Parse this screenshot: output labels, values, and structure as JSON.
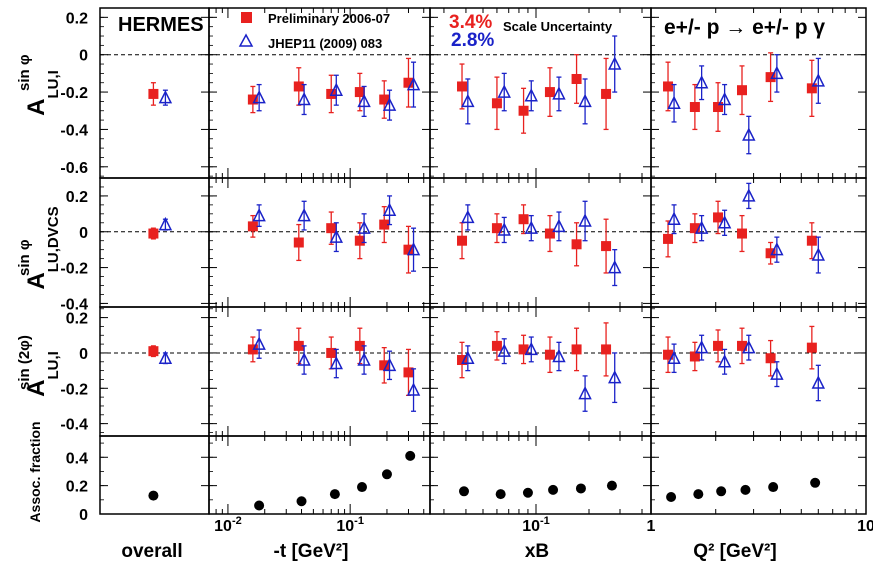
{
  "figure": {
    "experiment_label": "HERMES",
    "reaction": "e+/- p → e+/- p γ",
    "scale_uncertainty_red": "3.4%",
    "scale_uncertainty_blue": "2.8%",
    "scale_uncertainty_label": "Scale Uncertainty",
    "legend": [
      {
        "label": "Preliminary 2006-07",
        "marker": "filled-square",
        "color": "#e8211f"
      },
      {
        "label": "JHEP11 (2009) 083",
        "marker": "open-triangle",
        "color": "#1a22c8"
      }
    ],
    "row_labels": [
      {
        "main": "A",
        "sup": "sin φ",
        "sub": "LU,I"
      },
      {
        "main": "A",
        "sup": "sin φ",
        "sub": "LU,DVCS"
      },
      {
        "main": "A",
        "sup": "sin (2φ)",
        "sub": "LU,I"
      },
      {
        "main": "Assoc. fraction"
      }
    ],
    "column_labels": [
      "overall",
      "-t [GeV²]",
      "xB",
      "Q² [GeV²]"
    ],
    "colors": {
      "red": "#e8211f",
      "blue": "#1a22c8",
      "black": "#000000"
    }
  },
  "chart_data": {
    "type": "scatter",
    "x_scale": {
      "overall": {
        "type": "category",
        "x_red": "overall",
        "x_blue": "overall"
      },
      "t": {
        "type": "log",
        "xlim": [
          0.007,
          0.45
        ],
        "ticks": [
          0.01,
          0.1
        ],
        "tick_labels": [
          "10⁻²",
          "10⁻¹"
        ]
      },
      "xB": {
        "type": "log",
        "xlim": [
          0.025,
          0.45
        ],
        "ticks": [
          0.1
        ],
        "tick_labels": [
          "10⁻¹"
        ]
      },
      "Q2": {
        "type": "log",
        "xlim": [
          1,
          10
        ],
        "ticks": [
          1,
          10
        ],
        "tick_labels": [
          "1",
          "10"
        ]
      }
    },
    "rows": [
      {
        "ylim": [
          -0.66,
          0.25
        ],
        "yticks": [
          0.2,
          0,
          -0.2,
          -0.4,
          -0.6
        ],
        "ytick_labels": [
          "0.2",
          "0",
          "-0.2",
          "-0.4",
          "-0.6"
        ],
        "overall": {
          "red": {
            "y": -0.21,
            "err": 0.06
          },
          "blue": {
            "y": -0.23,
            "err": 0.04
          }
        },
        "t": {
          "x_red": [
            0.016,
            0.038,
            0.07,
            0.12,
            0.19,
            0.3
          ],
          "red": [
            [
              -0.24,
              0.07
            ],
            [
              -0.17,
              0.1
            ],
            [
              -0.21,
              0.1
            ],
            [
              -0.2,
              0.1
            ],
            [
              -0.24,
              0.1
            ],
            [
              -0.15,
              0.13
            ]
          ],
          "x_blue": [
            0.018,
            0.042,
            0.077,
            0.13,
            0.21,
            0.33
          ],
          "blue": [
            [
              -0.23,
              0.07
            ],
            [
              -0.24,
              0.08
            ],
            [
              -0.19,
              0.08
            ],
            [
              -0.25,
              0.08
            ],
            [
              -0.27,
              0.08
            ],
            [
              -0.16,
              0.12
            ]
          ]
        },
        "xB": {
          "x_red": [
            0.038,
            0.06,
            0.085,
            0.12,
            0.17,
            0.25
          ],
          "red": [
            [
              -0.17,
              0.12
            ],
            [
              -0.26,
              0.14
            ],
            [
              -0.3,
              0.12
            ],
            [
              -0.2,
              0.13
            ],
            [
              -0.13,
              0.13
            ],
            [
              -0.21,
              0.19
            ]
          ],
          "x_blue": [
            0.041,
            0.066,
            0.094,
            0.135,
            0.19,
            0.28
          ],
          "blue": [
            [
              -0.25,
              0.12
            ],
            [
              -0.2,
              0.1
            ],
            [
              -0.22,
              0.08
            ],
            [
              -0.21,
              0.09
            ],
            [
              -0.25,
              0.12
            ],
            [
              -0.05,
              0.15
            ]
          ]
        },
        "Q2": {
          "x_red": [
            1.2,
            1.6,
            2.05,
            2.65,
            3.6,
            5.6
          ],
          "red": [
            [
              -0.17,
              0.13
            ],
            [
              -0.28,
              0.12
            ],
            [
              -0.28,
              0.13
            ],
            [
              -0.19,
              0.13
            ],
            [
              -0.12,
              0.13
            ],
            [
              -0.18,
              0.15
            ]
          ],
          "x_blue": [
            1.28,
            1.72,
            2.2,
            2.85,
            3.85,
            6.0
          ],
          "blue": [
            [
              -0.26,
              0.1
            ],
            [
              -0.15,
              0.09
            ],
            [
              -0.24,
              0.08
            ],
            [
              -0.43,
              0.1
            ],
            [
              -0.1,
              0.1
            ],
            [
              -0.14,
              0.12
            ]
          ]
        }
      },
      {
        "ylim": [
          -0.42,
          0.3
        ],
        "yticks": [
          0.2,
          0,
          -0.2,
          -0.4
        ],
        "ytick_labels": [
          "0.2",
          "0",
          "-0.2",
          "-0.4"
        ],
        "overall": {
          "red": {
            "y": -0.01,
            "err": 0.03
          },
          "blue": {
            "y": 0.04,
            "err": 0.03
          }
        },
        "t": {
          "x_red": [
            0.016,
            0.038,
            0.07,
            0.12,
            0.19,
            0.3
          ],
          "red": [
            [
              0.03,
              0.06
            ],
            [
              -0.06,
              0.1
            ],
            [
              0.02,
              0.09
            ],
            [
              -0.05,
              0.1
            ],
            [
              0.04,
              0.1
            ],
            [
              -0.1,
              0.13
            ]
          ],
          "x_blue": [
            0.018,
            0.042,
            0.077,
            0.13,
            0.21,
            0.33
          ],
          "blue": [
            [
              0.09,
              0.06
            ],
            [
              0.09,
              0.08
            ],
            [
              -0.03,
              0.08
            ],
            [
              0.02,
              0.08
            ],
            [
              0.12,
              0.08
            ],
            [
              -0.1,
              0.12
            ]
          ]
        },
        "xB": {
          "x_red": [
            0.038,
            0.06,
            0.085,
            0.12,
            0.17,
            0.25
          ],
          "red": [
            [
              -0.05,
              0.1
            ],
            [
              0.02,
              0.08
            ],
            [
              0.07,
              0.08
            ],
            [
              -0.01,
              0.1
            ],
            [
              -0.07,
              0.12
            ],
            [
              -0.08,
              0.15
            ]
          ],
          "x_blue": [
            0.041,
            0.066,
            0.094,
            0.135,
            0.19,
            0.28
          ],
          "blue": [
            [
              0.08,
              0.07
            ],
            [
              0.01,
              0.07
            ],
            [
              0.02,
              0.07
            ],
            [
              0.03,
              0.08
            ],
            [
              0.06,
              0.11
            ],
            [
              -0.2,
              0.1
            ]
          ]
        },
        "Q2": {
          "x_red": [
            1.2,
            1.6,
            2.05,
            2.65,
            3.6,
            5.6
          ],
          "red": [
            [
              -0.04,
              0.1
            ],
            [
              0.02,
              0.08
            ],
            [
              0.08,
              0.09
            ],
            [
              -0.01,
              0.1
            ],
            [
              -0.12,
              0.06
            ],
            [
              -0.05,
              0.1
            ]
          ],
          "x_blue": [
            1.28,
            1.72,
            2.2,
            2.85,
            3.85,
            6.0
          ],
          "blue": [
            [
              0.07,
              0.08
            ],
            [
              0.02,
              0.07
            ],
            [
              0.05,
              0.07
            ],
            [
              0.2,
              0.07
            ],
            [
              -0.1,
              0.07
            ],
            [
              -0.13,
              0.1
            ]
          ]
        }
      },
      {
        "ylim": [
          -0.47,
          0.26
        ],
        "yticks": [
          0.2,
          0,
          -0.2,
          -0.4
        ],
        "ytick_labels": [
          "0.2",
          "0",
          "-0.2",
          "-0.4"
        ],
        "overall": {
          "red": {
            "y": 0.01,
            "err": 0.03
          },
          "blue": {
            "y": -0.03,
            "err": 0.03
          }
        },
        "t": {
          "x_red": [
            0.016,
            0.038,
            0.07,
            0.12,
            0.19,
            0.3
          ],
          "red": [
            [
              0.02,
              0.07
            ],
            [
              0.04,
              0.1
            ],
            [
              0.0,
              0.09
            ],
            [
              0.04,
              0.1
            ],
            [
              -0.07,
              0.1
            ],
            [
              -0.11,
              0.13
            ]
          ],
          "x_blue": [
            0.018,
            0.042,
            0.077,
            0.13,
            0.21,
            0.33
          ],
          "blue": [
            [
              0.05,
              0.08
            ],
            [
              -0.04,
              0.08
            ],
            [
              -0.06,
              0.08
            ],
            [
              -0.04,
              0.08
            ],
            [
              -0.07,
              0.08
            ],
            [
              -0.21,
              0.12
            ]
          ]
        },
        "xB": {
          "x_red": [
            0.038,
            0.06,
            0.085,
            0.12,
            0.17,
            0.25
          ],
          "red": [
            [
              -0.04,
              0.1
            ],
            [
              0.04,
              0.08
            ],
            [
              0.02,
              0.08
            ],
            [
              -0.01,
              0.1
            ],
            [
              0.02,
              0.12
            ],
            [
              0.02,
              0.15
            ]
          ],
          "x_blue": [
            0.041,
            0.066,
            0.094,
            0.135,
            0.19,
            0.28
          ],
          "blue": [
            [
              -0.03,
              0.07
            ],
            [
              0.01,
              0.07
            ],
            [
              0.02,
              0.07
            ],
            [
              -0.02,
              0.08
            ],
            [
              -0.23,
              0.1
            ],
            [
              -0.14,
              0.14
            ]
          ]
        },
        "Q2": {
          "x_red": [
            1.2,
            1.6,
            2.05,
            2.65,
            3.6,
            5.6
          ],
          "red": [
            [
              -0.01,
              0.1
            ],
            [
              -0.02,
              0.08
            ],
            [
              0.04,
              0.09
            ],
            [
              0.04,
              0.1
            ],
            [
              -0.03,
              0.1
            ],
            [
              0.03,
              0.12
            ]
          ],
          "x_blue": [
            1.28,
            1.72,
            2.2,
            2.85,
            3.85,
            6.0
          ],
          "blue": [
            [
              -0.03,
              0.08
            ],
            [
              0.03,
              0.07
            ],
            [
              -0.05,
              0.07
            ],
            [
              0.03,
              0.07
            ],
            [
              -0.12,
              0.07
            ],
            [
              -0.17,
              0.1
            ]
          ]
        }
      },
      {
        "ylim": [
          0,
          0.55
        ],
        "yticks": [
          0.4,
          0.2,
          0
        ],
        "ytick_labels": [
          "0.4",
          "0.2",
          "0"
        ],
        "overall": {
          "black": {
            "y": 0.13
          }
        },
        "t": {
          "x_black": [
            0.018,
            0.04,
            0.075,
            0.125,
            0.2,
            0.31
          ],
          "black": [
            0.06,
            0.09,
            0.14,
            0.19,
            0.28,
            0.41
          ]
        },
        "xB": {
          "x_black": [
            0.039,
            0.063,
            0.09,
            0.125,
            0.18,
            0.27
          ],
          "black": [
            0.16,
            0.14,
            0.15,
            0.17,
            0.18,
            0.2
          ]
        },
        "Q2": {
          "x_black": [
            1.24,
            1.66,
            2.12,
            2.75,
            3.7,
            5.8
          ],
          "black": [
            0.12,
            0.14,
            0.16,
            0.17,
            0.19,
            0.22
          ]
        }
      }
    ]
  }
}
